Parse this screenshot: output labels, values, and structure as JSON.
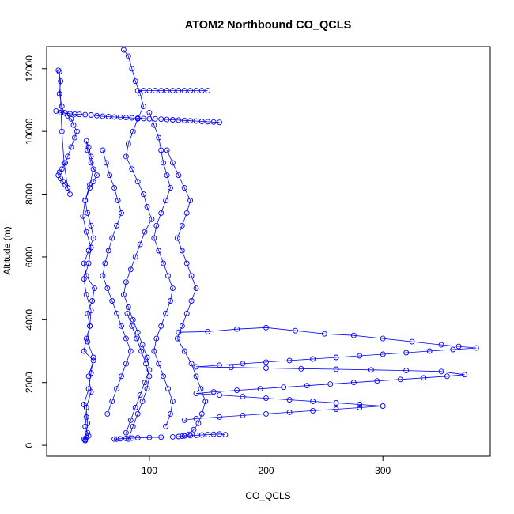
{
  "chart_data": {
    "type": "scatter",
    "title": "ATOM2 Northbound CO_QCLS",
    "xlabel": "CO_QCLS",
    "ylabel": "Altitude (m)",
    "xlim": [
      12,
      392
    ],
    "ylim": [
      -350,
      12700
    ],
    "x_ticks": [
      100,
      200,
      300
    ],
    "y_ticks": [
      0,
      2000,
      4000,
      6000,
      8000,
      10000,
      12000
    ],
    "marker": "open-circle",
    "connected": true,
    "grid": false,
    "color": "#0000ff",
    "series": [
      {
        "x": [
          45,
          47,
          46,
          50,
          48,
          52,
          44,
          46,
          49,
          47,
          51,
          53,
          46,
          44,
          48,
          52,
          50,
          47,
          45,
          49,
          52,
          55,
          50,
          47,
          46,
          48,
          50,
          52,
          49,
          45,
          43,
          46,
          50,
          48,
          44,
          46,
          50,
          49,
          47,
          52,
          50,
          48,
          44,
          46,
          45,
          47,
          48,
          46,
          44,
          45
        ],
        "y": [
          150,
          700,
          1200,
          1700,
          2200,
          2700,
          3000,
          3400,
          3800,
          4200,
          4600,
          5000,
          5400,
          5800,
          6200,
          6600,
          7000,
          7400,
          7800,
          8200,
          8400,
          8600,
          9000,
          9400,
          9700,
          9500,
          9200,
          8800,
          8300,
          7800,
          7300,
          6800,
          6300,
          5800,
          5300,
          4800,
          4300,
          3800,
          3300,
          2800,
          2300,
          1800,
          1300,
          900,
          600,
          400,
          300,
          250,
          200,
          180
        ]
      },
      {
        "x": [
          22,
          24,
          23,
          25,
          27,
          30,
          33,
          35,
          38,
          36,
          33,
          30,
          28,
          25,
          23,
          22,
          24,
          26,
          28,
          30,
          32,
          30,
          27,
          25,
          23
        ],
        "y": [
          11950,
          11600,
          11200,
          10800,
          10600,
          10500,
          10400,
          10200,
          10000,
          9800,
          9500,
          9200,
          9000,
          8800,
          8700,
          8600,
          8500,
          8400,
          8300,
          8200,
          8000,
          8200,
          9000,
          10000,
          11900
        ]
      },
      {
        "x": [
          78,
          82,
          85,
          88,
          92,
          95,
          90,
          86,
          82,
          80,
          85,
          90,
          95,
          98,
          102,
          96,
          92,
          88,
          84,
          80,
          78,
          82,
          86,
          90,
          94,
          98,
          100,
          96,
          92,
          88,
          84,
          80,
          82,
          86,
          90,
          94,
          98,
          100,
          97,
          93,
          89,
          85,
          81
        ],
        "y": [
          12600,
          12400,
          12000,
          11600,
          11200,
          10800,
          10400,
          10000,
          9600,
          9200,
          8800,
          8400,
          8000,
          7600,
          7200,
          6800,
          6400,
          6000,
          5600,
          5200,
          4800,
          4400,
          4000,
          3600,
          3200,
          2800,
          2400,
          2000,
          1600,
          1200,
          800,
          400,
          200,
          600,
          1000,
          1400,
          1800,
          2200,
          2600,
          3000,
          3400,
          3800,
          4200
        ]
      },
      {
        "x": [
          60,
          63,
          66,
          70,
          73,
          76,
          72,
          68,
          65,
          62,
          60,
          64,
          68,
          72,
          76,
          80,
          84,
          80,
          76,
          72,
          68,
          64
        ],
        "y": [
          9400,
          9000,
          8600,
          8200,
          7800,
          7400,
          7000,
          6600,
          6200,
          5800,
          5400,
          5000,
          4600,
          4200,
          3800,
          3400,
          3000,
          2600,
          2200,
          1800,
          1400,
          1000
        ]
      },
      {
        "x": [
          100,
          104,
          108,
          110,
          112,
          115,
          118,
          114,
          110,
          106,
          104,
          108,
          112,
          116,
          120,
          118,
          114,
          110,
          106,
          104,
          108,
          112,
          116,
          120,
          118,
          114
        ],
        "y": [
          10600,
          10200,
          9800,
          9400,
          9000,
          8600,
          8200,
          7800,
          7400,
          7000,
          6600,
          6200,
          5800,
          5400,
          5000,
          4600,
          4200,
          3800,
          3400,
          3000,
          2600,
          2200,
          1800,
          1400,
          1000,
          600
        ]
      },
      {
        "x": [
          115,
          120,
          125,
          130,
          135,
          132,
          128,
          124,
          128,
          132,
          136,
          140,
          136,
          132,
          128,
          124,
          130,
          136,
          140,
          144,
          148,
          145,
          142,
          138,
          134,
          130
        ],
        "y": [
          9400,
          9000,
          8600,
          8200,
          7800,
          7400,
          7000,
          6600,
          6200,
          5800,
          5400,
          5000,
          4600,
          4200,
          3800,
          3400,
          3000,
          2600,
          2200,
          1800,
          1400,
          1000,
          700,
          500,
          350,
          300
        ]
      },
      {
        "x": [
          125,
          150,
          175,
          200,
          225,
          250,
          275,
          300,
          325,
          350,
          365,
          380,
          360,
          340,
          320,
          300,
          280,
          260,
          240,
          220,
          200,
          180,
          160,
          140,
          170,
          200,
          230,
          260,
          290,
          320,
          350,
          370,
          355,
          335,
          315,
          295,
          275,
          255,
          235,
          215,
          195,
          175,
          155,
          140,
          160,
          180,
          200,
          220,
          240,
          260,
          280,
          300,
          280,
          260,
          240,
          220,
          200,
          180,
          160,
          140,
          130
        ],
        "y": [
          3600,
          3620,
          3700,
          3750,
          3650,
          3550,
          3500,
          3400,
          3300,
          3200,
          3150,
          3100,
          3050,
          3000,
          2950,
          2900,
          2850,
          2800,
          2750,
          2700,
          2650,
          2600,
          2550,
          2500,
          2480,
          2460,
          2440,
          2420,
          2400,
          2380,
          2350,
          2250,
          2200,
          2150,
          2100,
          2050,
          2000,
          1950,
          1900,
          1850,
          1800,
          1750,
          1700,
          1650,
          1600,
          1550,
          1500,
          1450,
          1400,
          1350,
          1300,
          1250,
          1200,
          1150,
          1100,
          1050,
          1000,
          950,
          900,
          850,
          800
        ]
      },
      {
        "x": [
          20,
          24,
          28,
          32,
          36,
          40,
          45,
          50,
          55,
          60,
          65,
          70,
          75,
          80,
          85,
          90,
          95,
          100,
          105,
          110,
          115,
          120,
          125,
          130,
          135,
          140,
          145,
          150,
          155,
          160
        ],
        "y": [
          10650,
          10600,
          10580,
          10560,
          10550,
          10540,
          10530,
          10520,
          10500,
          10480,
          10470,
          10460,
          10450,
          10440,
          10430,
          10420,
          10410,
          10400,
          10400,
          10390,
          10380,
          10370,
          10360,
          10350,
          10340,
          10330,
          10320,
          10310,
          10300,
          10290
        ]
      },
      {
        "x": [
          90,
          95,
          100,
          105,
          110,
          115,
          120,
          125,
          130,
          135,
          140,
          145,
          150
        ],
        "y": [
          11300,
          11300,
          11300,
          11300,
          11300,
          11300,
          11300,
          11300,
          11300,
          11300,
          11300,
          11300,
          11300
        ]
      },
      {
        "x": [
          70,
          72,
          75,
          80,
          85,
          90,
          100,
          110,
          120,
          125,
          128,
          130,
          135,
          140,
          145,
          150,
          155,
          160,
          165
        ],
        "y": [
          200,
          200,
          210,
          220,
          230,
          240,
          250,
          260,
          270,
          280,
          290,
          300,
          310,
          320,
          330,
          340,
          350,
          360,
          340
        ]
      }
    ]
  }
}
